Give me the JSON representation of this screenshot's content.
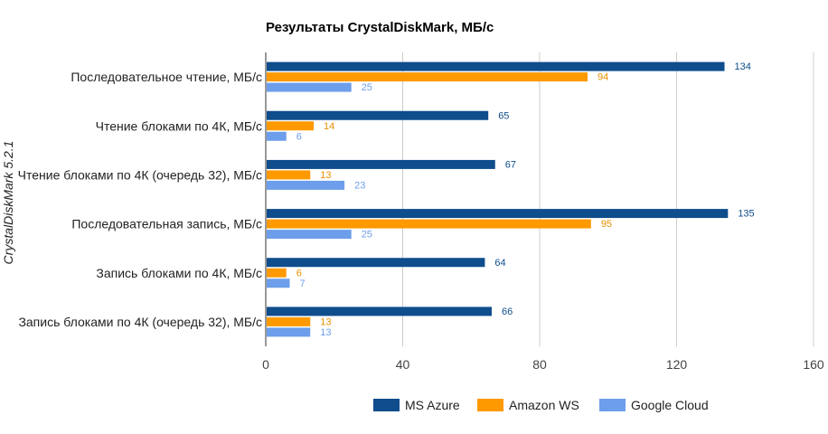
{
  "chart_data": {
    "type": "bar",
    "orientation": "horizontal",
    "title": "Результаты CrystalDiskMark, МБ/с",
    "ylabel": "CrystalDiskMark 5.2.1",
    "xlabel": "",
    "xlim": [
      0,
      160
    ],
    "xticks": [
      0,
      40,
      80,
      120,
      160
    ],
    "grid": true,
    "legend_position": "bottom",
    "categories": [
      "Последовательное чтение, МБ/с",
      "Чтение блоками по 4К, МБ/с",
      "Чтение блоками по 4К (очередь 32), МБ/с",
      "Последовательная запись, МБ/с",
      "Запись блоками по 4К, МБ/с",
      "Запись блоками по 4К (очередь 32), МБ/с"
    ],
    "series": [
      {
        "name": "MS Azure",
        "color": "#0f4d8c",
        "label_color": "#0f4d8c",
        "values": [
          134,
          65,
          67,
          135,
          64,
          66
        ]
      },
      {
        "name": "Amazon WS",
        "color": "#ff9900",
        "label_color": "#e69100",
        "values": [
          94,
          14,
          13,
          95,
          6,
          13
        ]
      },
      {
        "name": "Google Cloud",
        "color": "#6d9eeb",
        "label_color": "#6d9eeb",
        "values": [
          25,
          6,
          23,
          25,
          7,
          13
        ]
      }
    ]
  }
}
